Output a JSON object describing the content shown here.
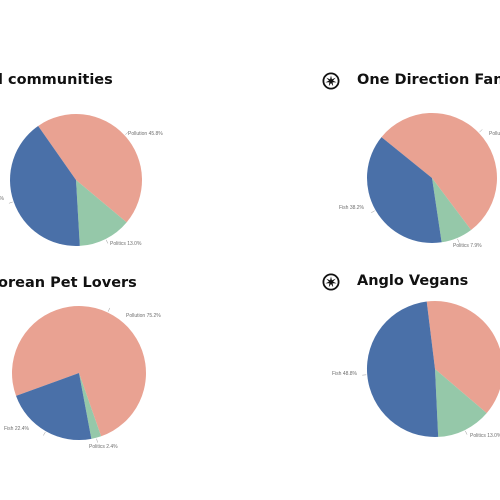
{
  "colors": {
    "Pollution": "#e9a292",
    "Fish": "#4a70a8",
    "Politics": "#95c8a9"
  },
  "chart_data": [
    {
      "type": "pie",
      "title": "l communities",
      "icon": "",
      "slices": [
        {
          "label": "Pollution",
          "value": 45.8,
          "text": "Pollution 45.8%"
        },
        {
          "label": "Politics",
          "value": 13.0,
          "text": "Politics 13.0%"
        },
        {
          "label": "Fish",
          "value": 41.2,
          "text": "%"
        }
      ]
    },
    {
      "type": "pie",
      "title": "One Direction Fans",
      "icon": "spiky-circle-logo-icon",
      "slices": [
        {
          "label": "Pollution",
          "value": 53.9,
          "text": "Pollu"
        },
        {
          "label": "Politics",
          "value": 7.9,
          "text": "Politics 7.9%"
        },
        {
          "label": "Fish",
          "value": 38.2,
          "text": "Fish 38.2%"
        }
      ]
    },
    {
      "type": "pie",
      "title": "orean Pet Lovers",
      "icon": "",
      "slices": [
        {
          "label": "Pollution",
          "value": 75.2,
          "text": "Pollution 75.2%"
        },
        {
          "label": "Politics",
          "value": 2.4,
          "text": "Politics 2.4%"
        },
        {
          "label": "Fish",
          "value": 22.4,
          "text": "Fish 22.4%"
        }
      ]
    },
    {
      "type": "pie",
      "title": "Anglo Vegans",
      "icon": "spiky-circle-logo-icon",
      "slices": [
        {
          "label": "Pollution",
          "value": 38.2,
          "text": ""
        },
        {
          "label": "Politics",
          "value": 13.0,
          "text": "Politics 13.0%"
        },
        {
          "label": "Fish",
          "value": 48.8,
          "text": "Fish 48.8%"
        }
      ]
    }
  ]
}
